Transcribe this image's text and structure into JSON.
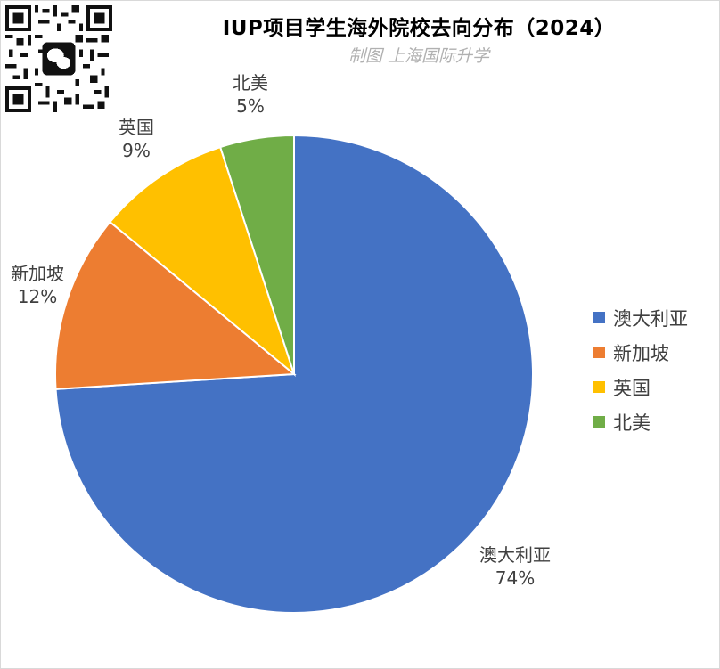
{
  "chart_data": {
    "type": "pie",
    "title": "IUP项目学生海外院校去向分布（2024）",
    "subtitle": "制图 上海国际升学",
    "start_angle_deg": 0,
    "direction": "clockwise",
    "legend_position": "right",
    "slices": [
      {
        "label": "澳大利亚",
        "value": 74,
        "value_label": "74%",
        "color": "#4472C4"
      },
      {
        "label": "新加坡",
        "value": 12,
        "value_label": "12%",
        "color": "#ED7D31"
      },
      {
        "label": "英国",
        "value": 9,
        "value_label": "9%",
        "color": "#FFC000"
      },
      {
        "label": "北美",
        "value": 5,
        "value_label": "5%",
        "color": "#70AD47"
      }
    ]
  },
  "icons": {
    "qr_code": "wechat-qr-code-icon"
  }
}
